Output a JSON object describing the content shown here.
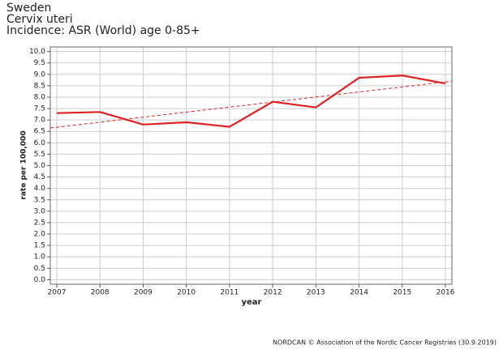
{
  "chart_data": {
    "type": "line",
    "title": "Sweden",
    "subtitle": "Cervix uteri",
    "subtitle2": "Incidence: ASR (World) age 0-85+",
    "x_label": "year",
    "y_label": "rate per 100,000",
    "footer": "NORDCAN © Association of the Nordic Cancer Registries (30.9.2019)",
    "x": [
      2007,
      2008,
      2009,
      2010,
      2011,
      2012,
      2013,
      2014,
      2015,
      2016
    ],
    "series": [
      {
        "name": "Sweden",
        "color": "#e02020",
        "values": [
          7.3,
          7.35,
          6.8,
          6.9,
          6.7,
          7.8,
          7.55,
          8.85,
          8.95,
          8.6
        ]
      }
    ],
    "trendline": {
      "x": [
        2006.85,
        2016.15
      ],
      "values": [
        6.65,
        8.7
      ],
      "color": "#e02020",
      "dashed": true
    },
    "xlim": [
      2006.85,
      2016.15
    ],
    "xticks": [
      2007,
      2008,
      2009,
      2010,
      2011,
      2012,
      2013,
      2014,
      2015,
      2016
    ],
    "ylim": [
      -0.2,
      10.2
    ],
    "yticks": [
      {
        "value": 0,
        "label": "0.0"
      },
      {
        "value": 0.5,
        "label": "0.5"
      },
      {
        "value": 1,
        "label": "1.0"
      },
      {
        "value": 1.5,
        "label": "1.5"
      },
      {
        "value": 2,
        "label": "2.0"
      },
      {
        "value": 2.5,
        "label": "2.5"
      },
      {
        "value": 3,
        "label": "3.0"
      },
      {
        "value": 3.5,
        "label": "3.5"
      },
      {
        "value": 4,
        "label": "4.0"
      },
      {
        "value": 4.5,
        "label": "4.5"
      },
      {
        "value": 5,
        "label": "5.0"
      },
      {
        "value": 5.5,
        "label": "5.5"
      },
      {
        "value": 6,
        "label": "6.0"
      },
      {
        "value": 6.5,
        "label": "6.5"
      },
      {
        "value": 7,
        "label": "7.0"
      },
      {
        "value": 7.5,
        "label": "7.5"
      },
      {
        "value": 8,
        "label": "8.0"
      },
      {
        "value": 8.5,
        "label": "8.5"
      },
      {
        "value": 9,
        "label": "9.0"
      },
      {
        "value": 9.5,
        "label": "9.5"
      },
      {
        "value": 10,
        "label": "10.0"
      }
    ],
    "grid": true
  }
}
